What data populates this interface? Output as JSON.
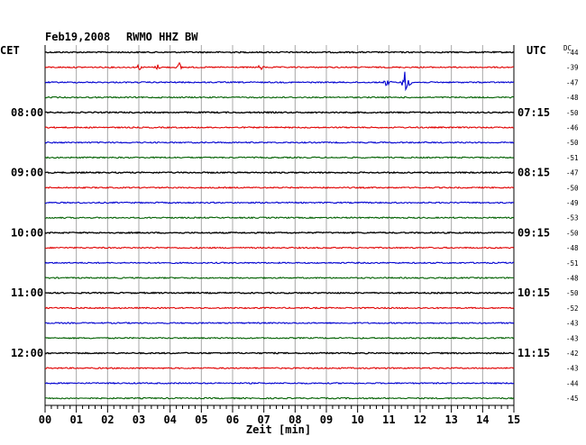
{
  "header": {
    "date": "Feb19,2008",
    "station": "RWMO HHZ BW",
    "left_timezone": "CET",
    "right_timezone": "UTC",
    "dc_header": "DC"
  },
  "chart_data": {
    "type": "line",
    "title": "Feb19,2008   RWMO HHZ BW",
    "xlabel": "Zeit [min]",
    "xlim": [
      0,
      15
    ],
    "x_ticks": [
      "00",
      "01",
      "02",
      "03",
      "04",
      "05",
      "06",
      "07",
      "08",
      "09",
      "10",
      "11",
      "12",
      "13",
      "14",
      "15"
    ],
    "left_hour_labels": [
      {
        "row": 4,
        "label": "08:00"
      },
      {
        "row": 8,
        "label": "09:00"
      },
      {
        "row": 12,
        "label": "10:00"
      },
      {
        "row": 16,
        "label": "11:00"
      },
      {
        "row": 20,
        "label": "12:00"
      }
    ],
    "right_hour_labels": [
      {
        "row": 4,
        "label": "07:15"
      },
      {
        "row": 8,
        "label": "08:15"
      },
      {
        "row": 12,
        "label": "09:15"
      },
      {
        "row": 16,
        "label": "10:15"
      },
      {
        "row": 20,
        "label": "11:15"
      }
    ],
    "dc_offsets": [
      "-44",
      "-39",
      "-47",
      "-48",
      "-50",
      "-46",
      "-50",
      "-51",
      "-47",
      "-50",
      "-49",
      "-53",
      "-50",
      "-48",
      "-51",
      "-48",
      "-50",
      "-52",
      "-43",
      "-43",
      "-42",
      "-43",
      "-44",
      "-45"
    ],
    "trace_colors": [
      "#000000",
      "#e00000",
      "#0000d0",
      "#006000"
    ],
    "events": [
      {
        "row": 1,
        "minute": 3.0,
        "amplitude": 5
      },
      {
        "row": 1,
        "minute": 3.6,
        "amplitude": 4
      },
      {
        "row": 1,
        "minute": 4.3,
        "amplitude": 6
      },
      {
        "row": 1,
        "minute": 6.9,
        "amplitude": 5
      },
      {
        "row": 2,
        "minute": 10.95,
        "amplitude": 8
      },
      {
        "row": 2,
        "minute": 11.55,
        "amplitude": 26
      }
    ]
  }
}
